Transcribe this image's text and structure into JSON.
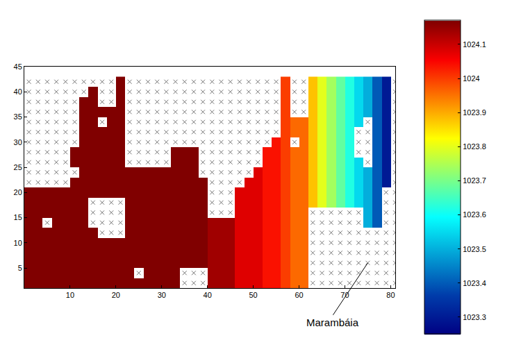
{
  "chart_data": {
    "type": "heatmap",
    "x": [
      1,
      3,
      5,
      7,
      9,
      11,
      13,
      15,
      17,
      19,
      21,
      23,
      25,
      27,
      29,
      31,
      33,
      35,
      37,
      39,
      41,
      43,
      45,
      47,
      49,
      51,
      53,
      55,
      57,
      59,
      61,
      63,
      65,
      67,
      69,
      71,
      73,
      75,
      77,
      79,
      81
    ],
    "y": [
      2,
      4,
      6,
      8,
      10,
      12,
      14,
      16,
      18,
      20,
      22,
      24,
      26,
      28,
      30,
      32,
      34,
      36,
      38,
      40,
      42
    ],
    "z": [
      [
        1024.17,
        1024.17,
        1024.17,
        1024.17,
        1024.17,
        1024.17,
        1024.17,
        1024.17,
        1024.17,
        1024.17,
        1024.17,
        1024.17,
        1024.17,
        1024.17,
        1024.17,
        1024.17,
        1024.17,
        null,
        null,
        null,
        1024.14,
        1024.14,
        1024.14,
        1024.08,
        1024.08,
        1024.08,
        1024.04,
        1024.04,
        1024.0,
        1023.96,
        1023.96,
        null,
        null,
        null,
        null,
        null,
        null,
        null,
        null,
        null,
        null
      ],
      [
        1024.17,
        1024.17,
        1024.17,
        1024.17,
        1024.17,
        1024.17,
        1024.17,
        1024.17,
        1024.17,
        1024.17,
        1024.17,
        1024.17,
        null,
        1024.17,
        1024.17,
        1024.17,
        1024.17,
        null,
        null,
        null,
        1024.14,
        1024.14,
        1024.14,
        1024.08,
        1024.08,
        1024.08,
        1024.04,
        1024.04,
        1024.0,
        1023.96,
        1023.96,
        null,
        null,
        null,
        null,
        null,
        null,
        null,
        null,
        null,
        null
      ],
      [
        1024.17,
        1024.17,
        1024.17,
        1024.17,
        1024.17,
        1024.17,
        1024.17,
        1024.17,
        1024.17,
        1024.17,
        1024.17,
        1024.17,
        1024.17,
        1024.17,
        1024.17,
        1024.17,
        1024.17,
        1024.17,
        1024.17,
        1024.17,
        1024.14,
        1024.14,
        1024.14,
        1024.08,
        1024.08,
        1024.08,
        1024.04,
        1024.04,
        1024.0,
        1023.96,
        1023.96,
        null,
        null,
        null,
        null,
        null,
        null,
        null,
        null,
        null,
        null
      ],
      [
        1024.17,
        1024.17,
        1024.17,
        1024.17,
        1024.17,
        1024.17,
        1024.17,
        1024.17,
        1024.17,
        1024.17,
        1024.17,
        1024.17,
        1024.17,
        1024.17,
        1024.17,
        1024.17,
        1024.17,
        1024.17,
        1024.17,
        1024.17,
        1024.14,
        1024.14,
        1024.14,
        1024.08,
        1024.08,
        1024.08,
        1024.04,
        1024.04,
        1024.0,
        1023.96,
        1023.96,
        null,
        null,
        null,
        null,
        null,
        null,
        null,
        null,
        null,
        null
      ],
      [
        1024.17,
        1024.17,
        1024.17,
        1024.17,
        1024.17,
        1024.17,
        1024.17,
        1024.17,
        1024.17,
        1024.17,
        1024.17,
        1024.17,
        1024.17,
        1024.17,
        1024.17,
        1024.17,
        1024.17,
        1024.17,
        1024.17,
        1024.17,
        1024.14,
        1024.14,
        1024.14,
        1024.08,
        1024.08,
        1024.08,
        1024.04,
        1024.04,
        1024.0,
        1023.96,
        1023.96,
        null,
        null,
        null,
        null,
        null,
        null,
        null,
        null,
        null,
        null
      ],
      [
        1024.17,
        1024.17,
        1024.17,
        1024.17,
        1024.17,
        1024.17,
        1024.17,
        1024.17,
        null,
        null,
        null,
        1024.17,
        1024.17,
        1024.17,
        1024.17,
        1024.17,
        1024.17,
        1024.17,
        1024.17,
        1024.17,
        1024.14,
        1024.14,
        1024.14,
        1024.08,
        1024.08,
        1024.08,
        1024.04,
        1024.04,
        1024.0,
        1023.96,
        1023.96,
        null,
        null,
        null,
        null,
        null,
        null,
        null,
        null,
        null,
        null
      ],
      [
        1024.17,
        1024.17,
        null,
        1024.17,
        1024.17,
        1024.17,
        1024.17,
        null,
        null,
        null,
        null,
        1024.17,
        1024.17,
        1024.17,
        1024.17,
        1024.17,
        1024.17,
        1024.17,
        1024.17,
        1024.17,
        1024.14,
        1024.14,
        1024.14,
        1024.08,
        1024.08,
        1024.08,
        1024.04,
        1024.04,
        1024.0,
        1023.96,
        1023.96,
        null,
        null,
        null,
        null,
        null,
        null,
        1023.5,
        1023.4,
        null,
        null
      ],
      [
        1024.17,
        1024.17,
        1024.17,
        1024.17,
        1024.17,
        1024.17,
        1024.17,
        null,
        null,
        null,
        null,
        1024.17,
        1024.17,
        1024.17,
        1024.17,
        1024.17,
        1024.17,
        1024.17,
        1024.17,
        1024.17,
        null,
        null,
        null,
        1024.08,
        1024.08,
        1024.08,
        1024.04,
        1024.04,
        1024.0,
        1023.96,
        1023.96,
        null,
        null,
        null,
        null,
        null,
        null,
        1023.5,
        1023.4,
        null,
        null
      ],
      [
        1024.17,
        1024.17,
        1024.17,
        1024.17,
        1024.17,
        1024.17,
        1024.17,
        null,
        null,
        null,
        null,
        1024.17,
        1024.17,
        1024.17,
        1024.17,
        1024.17,
        1024.17,
        1024.17,
        1024.17,
        1024.17,
        null,
        null,
        null,
        1024.08,
        1024.08,
        1024.08,
        1024.04,
        1024.04,
        1024.0,
        1023.96,
        1023.96,
        1023.88,
        1023.8,
        1023.74,
        1023.68,
        1023.62,
        1023.55,
        1023.5,
        1023.4,
        null,
        null
      ],
      [
        1024.17,
        1024.17,
        1024.17,
        1024.17,
        1024.17,
        1024.17,
        1024.17,
        1024.17,
        1024.17,
        1024.17,
        1024.17,
        1024.17,
        1024.17,
        1024.17,
        1024.17,
        1024.17,
        1024.17,
        1024.17,
        1024.17,
        1024.17,
        null,
        null,
        null,
        1024.08,
        1024.08,
        1024.08,
        1024.04,
        1024.04,
        1024.0,
        1023.96,
        1023.96,
        1023.88,
        1023.8,
        1023.74,
        1023.68,
        1023.62,
        1023.55,
        1023.5,
        1023.4,
        null,
        null
      ],
      [
        null,
        null,
        null,
        null,
        null,
        1024.17,
        1024.17,
        1024.17,
        1024.17,
        1024.17,
        1024.17,
        1024.17,
        1024.17,
        1024.17,
        1024.17,
        1024.17,
        1024.17,
        1024.17,
        1024.17,
        1024.17,
        null,
        null,
        null,
        null,
        1024.08,
        1024.08,
        1024.04,
        1024.04,
        1024.0,
        1023.96,
        1023.96,
        1023.88,
        1023.8,
        1023.74,
        1023.68,
        1023.62,
        1023.55,
        1023.5,
        1023.4,
        1023.3,
        null
      ],
      [
        null,
        null,
        null,
        null,
        null,
        null,
        1024.17,
        1024.17,
        1024.17,
        1024.17,
        1024.17,
        1024.17,
        1024.17,
        1024.17,
        1024.17,
        1024.17,
        1024.17,
        1024.17,
        1024.17,
        null,
        null,
        null,
        null,
        null,
        null,
        1024.08,
        1024.04,
        1024.04,
        1024.0,
        1023.96,
        1023.96,
        1023.88,
        1023.8,
        1023.74,
        1023.68,
        1023.62,
        1023.55,
        1023.5,
        1023.4,
        1023.3,
        null
      ],
      [
        null,
        null,
        null,
        null,
        null,
        1024.17,
        1024.17,
        1024.17,
        1024.17,
        1024.17,
        1024.17,
        null,
        null,
        null,
        null,
        null,
        1024.17,
        1024.17,
        1024.17,
        null,
        null,
        null,
        null,
        null,
        null,
        null,
        1024.04,
        1024.04,
        1024.0,
        1023.96,
        1023.96,
        1023.88,
        1023.8,
        1023.74,
        1023.68,
        1023.62,
        1023.55,
        null,
        1023.4,
        1023.3,
        null
      ],
      [
        null,
        null,
        null,
        null,
        null,
        1024.17,
        1024.17,
        1024.17,
        1024.17,
        1024.17,
        1024.17,
        null,
        null,
        null,
        null,
        null,
        1024.17,
        1024.17,
        1024.17,
        null,
        null,
        null,
        null,
        null,
        null,
        null,
        1024.04,
        1024.04,
        1024.0,
        1023.96,
        1023.96,
        1023.88,
        1023.8,
        1023.74,
        1023.68,
        1023.62,
        null,
        null,
        1023.4,
        1023.3,
        null
      ],
      [
        null,
        null,
        null,
        null,
        null,
        null,
        1024.17,
        1024.17,
        1024.17,
        1024.17,
        1024.17,
        null,
        null,
        null,
        null,
        null,
        null,
        null,
        null,
        null,
        null,
        null,
        null,
        null,
        null,
        null,
        null,
        1024.04,
        1024.0,
        null,
        1023.96,
        1023.88,
        1023.8,
        1023.74,
        1023.68,
        1023.62,
        null,
        null,
        1023.4,
        1023.3,
        null
      ],
      [
        null,
        null,
        null,
        null,
        null,
        null,
        1024.17,
        1024.17,
        1024.17,
        1024.17,
        1024.17,
        null,
        null,
        null,
        null,
        null,
        null,
        null,
        null,
        null,
        null,
        null,
        null,
        null,
        null,
        null,
        null,
        null,
        1024.0,
        1023.96,
        1023.96,
        1023.88,
        1023.8,
        1023.74,
        1023.68,
        1023.62,
        null,
        null,
        1023.4,
        1023.3,
        null
      ],
      [
        null,
        null,
        null,
        null,
        null,
        null,
        1024.17,
        1024.17,
        null,
        1024.17,
        1024.17,
        null,
        null,
        null,
        null,
        null,
        null,
        null,
        null,
        null,
        null,
        null,
        null,
        null,
        null,
        null,
        null,
        null,
        1024.0,
        1023.96,
        1023.96,
        1023.88,
        1023.8,
        1023.74,
        1023.68,
        1023.62,
        1023.55,
        null,
        1023.4,
        1023.3,
        null
      ],
      [
        null,
        null,
        null,
        null,
        null,
        null,
        1024.17,
        1024.17,
        1024.17,
        1024.17,
        1024.17,
        null,
        null,
        null,
        null,
        null,
        null,
        null,
        null,
        null,
        null,
        null,
        null,
        null,
        null,
        null,
        null,
        null,
        1024.0,
        null,
        null,
        1023.88,
        1023.8,
        1023.74,
        1023.68,
        1023.62,
        1023.55,
        1023.5,
        1023.4,
        1023.3,
        null
      ],
      [
        null,
        null,
        null,
        null,
        null,
        null,
        1024.17,
        1024.17,
        null,
        null,
        1024.17,
        null,
        null,
        null,
        null,
        null,
        null,
        null,
        null,
        null,
        null,
        null,
        null,
        null,
        null,
        null,
        null,
        null,
        1024.0,
        null,
        null,
        1023.88,
        1023.8,
        1023.74,
        1023.68,
        1023.62,
        1023.55,
        1023.5,
        1023.4,
        1023.3,
        null
      ],
      [
        null,
        null,
        null,
        null,
        null,
        null,
        null,
        1024.17,
        null,
        null,
        1024.17,
        null,
        null,
        null,
        null,
        null,
        null,
        null,
        null,
        null,
        null,
        null,
        null,
        null,
        null,
        null,
        null,
        null,
        1024.0,
        null,
        null,
        1023.88,
        1023.8,
        1023.74,
        1023.68,
        1023.62,
        1023.55,
        1023.5,
        1023.4,
        1023.3,
        null
      ],
      [
        null,
        null,
        null,
        null,
        null,
        null,
        null,
        null,
        null,
        null,
        1024.17,
        null,
        null,
        null,
        null,
        null,
        null,
        null,
        null,
        null,
        null,
        null,
        null,
        null,
        null,
        null,
        null,
        null,
        1024.0,
        null,
        null,
        1023.88,
        1023.8,
        1023.74,
        1023.68,
        1023.62,
        1023.55,
        1023.5,
        1023.4,
        1023.3,
        null
      ]
    ],
    "xlim": [
      0,
      81
    ],
    "ylim": [
      1,
      45
    ],
    "xticks": [
      10,
      20,
      30,
      40,
      50,
      60,
      70,
      80
    ],
    "yticks": [
      5,
      10,
      15,
      20,
      25,
      30,
      35,
      40,
      45
    ],
    "colorbar": {
      "range": [
        1023.25,
        1024.17
      ],
      "ticks": [
        1023.3,
        1023.4,
        1023.5,
        1023.6,
        1023.7,
        1023.8,
        1023.9,
        1024,
        1024.1
      ]
    },
    "marker": "x",
    "annotations": [
      {
        "text": "Marambáia",
        "x": 75,
        "y": 6
      }
    ]
  }
}
